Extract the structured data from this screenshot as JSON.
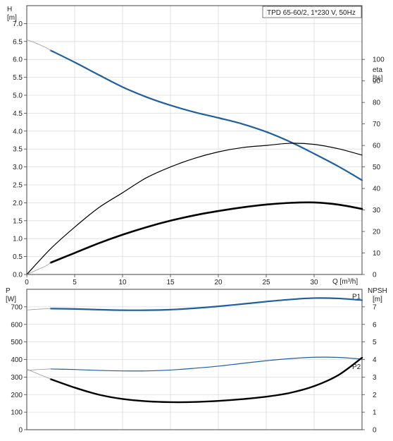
{
  "chart_data": [
    {
      "type": "line",
      "title": "TPD 65-60/2, 1*230 V, 50Hz",
      "xlabel": "Q [m³/h]",
      "ylabel": "H",
      "ylabel_unit": "[m]",
      "y2label": "eta",
      "y2label_unit": "[%]",
      "xlim": [
        0,
        35
      ],
      "ylim": [
        0,
        7.5
      ],
      "y2lim": [
        0,
        125
      ],
      "xticks": [
        0,
        5,
        10,
        15,
        20,
        25,
        30
      ],
      "yticks": [
        "0.0",
        "0.5",
        "1.0",
        "1.5",
        "2.0",
        "2.5",
        "3.0",
        "3.5",
        "4.0",
        "4.5",
        "5.0",
        "5.5",
        "6.0",
        "6.5",
        "7.0"
      ],
      "y2ticks": [
        "0",
        "10",
        "20",
        "30",
        "40",
        "50",
        "60",
        "70",
        "80",
        "90",
        "100"
      ],
      "grid": true,
      "series": [
        {
          "axis": "left",
          "color": "#1f5fa0",
          "width": 2.2,
          "x": [
            2.5,
            5,
            7.5,
            10,
            12.5,
            15,
            17.5,
            20,
            22.5,
            25,
            27.5,
            30,
            32.5,
            35
          ],
          "y": [
            6.25,
            5.92,
            5.57,
            5.23,
            4.95,
            4.72,
            4.53,
            4.37,
            4.2,
            3.98,
            3.7,
            3.37,
            3.02,
            2.63
          ]
        },
        {
          "axis": "left",
          "color": "#999999",
          "width": 0.8,
          "x": [
            0,
            1,
            2,
            2.5
          ],
          "y": [
            6.55,
            6.45,
            6.33,
            6.25
          ]
        },
        {
          "axis": "right",
          "color": "#000000",
          "width": 1.2,
          "x": [
            0,
            2.5,
            5,
            7.5,
            10,
            12.5,
            15,
            17.5,
            20,
            22.5,
            25,
            27.5,
            30,
            32.5,
            35
          ],
          "y": [
            0,
            12,
            22,
            31,
            38,
            45,
            50,
            54,
            57,
            59,
            60,
            61,
            60.5,
            58.5,
            55.5
          ]
        },
        {
          "axis": "right",
          "color": "#000000",
          "width": 2.6,
          "x": [
            2.5,
            5,
            7.5,
            10,
            12.5,
            15,
            17.5,
            20,
            22.5,
            25,
            27.5,
            30,
            32.5,
            35
          ],
          "y": [
            5.5,
            10,
            14.5,
            18.5,
            22,
            25,
            27.5,
            29.5,
            31.2,
            32.5,
            33.3,
            33.5,
            32.5,
            30.5
          ]
        },
        {
          "axis": "right",
          "color": "#999999",
          "width": 0.8,
          "x": [
            0,
            1,
            2,
            2.5
          ],
          "y": [
            0,
            2,
            4,
            5.5
          ]
        }
      ]
    },
    {
      "type": "line",
      "xlabel": "",
      "ylabel": "P",
      "ylabel_unit": "[W]",
      "y2label": "NPSH",
      "y2label_unit": "[m]",
      "xlim": [
        0,
        35
      ],
      "ylim": [
        0,
        800
      ],
      "y2lim": [
        0,
        8
      ],
      "yticks": [
        "0",
        "100",
        "200",
        "300",
        "400",
        "500",
        "600",
        "700"
      ],
      "y2ticks": [
        "0",
        "1",
        "2",
        "3",
        "4",
        "5",
        "6",
        "7"
      ],
      "grid": true,
      "series": [
        {
          "name": "P1",
          "axis": "left",
          "color": "#1f5fa0",
          "width": 2.2,
          "x": [
            2.5,
            5,
            7.5,
            10,
            12.5,
            15,
            17.5,
            20,
            22.5,
            25,
            27.5,
            30,
            32.5,
            35
          ],
          "y": [
            690,
            688,
            684,
            681,
            681,
            684,
            692,
            703,
            716,
            730,
            742,
            750,
            748,
            738
          ]
        },
        {
          "axis": "left",
          "color": "#999999",
          "width": 0.8,
          "x": [
            0,
            1,
            2,
            2.5
          ],
          "y": [
            682,
            686,
            689,
            690
          ]
        },
        {
          "name": "P2",
          "axis": "left",
          "color": "#1f5fa0",
          "width": 1.2,
          "x": [
            2.5,
            5,
            7.5,
            10,
            12.5,
            15,
            17.5,
            20,
            22.5,
            25,
            27.5,
            30,
            32.5,
            35
          ],
          "y": [
            346,
            343,
            338,
            335,
            335,
            340,
            350,
            362,
            378,
            393,
            405,
            413,
            412,
            402
          ]
        },
        {
          "axis": "left",
          "color": "#999999",
          "width": 0.8,
          "x": [
            0,
            1,
            2,
            2.5
          ],
          "y": [
            338,
            342,
            345,
            346
          ]
        },
        {
          "axis": "right",
          "color": "#000000",
          "width": 2.4,
          "x": [
            2.5,
            5,
            7.5,
            10,
            12.5,
            15,
            17.5,
            20,
            22.5,
            25,
            27.5,
            30,
            32.5,
            35
          ],
          "y": [
            2.88,
            2.4,
            2.0,
            1.75,
            1.62,
            1.57,
            1.58,
            1.64,
            1.74,
            1.88,
            2.1,
            2.48,
            3.1,
            4.1
          ]
        },
        {
          "axis": "right",
          "color": "#999999",
          "width": 0.8,
          "x": [
            0,
            1,
            2,
            2.5
          ],
          "y": [
            3.45,
            3.22,
            3.0,
            2.88
          ]
        }
      ]
    }
  ]
}
